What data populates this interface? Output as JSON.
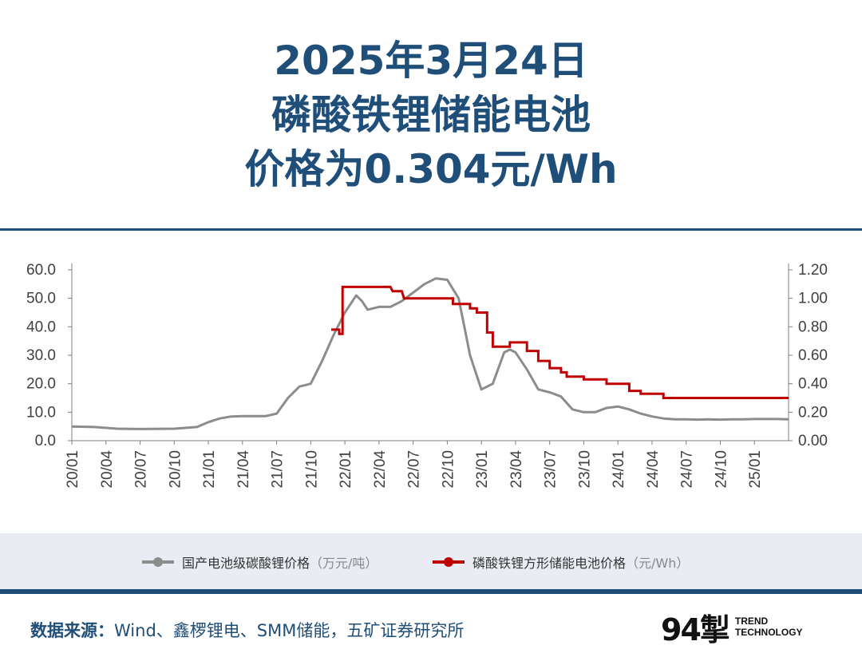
{
  "header": {
    "line1": "2025年3月24日",
    "line2": "磷酸铁锂储能电池",
    "line3": "价格为0.304元/Wh"
  },
  "legend": {
    "series1_label": "国产电池级碳酸锂价格",
    "series1_unit": "（万元/吨）",
    "series2_label": "磷酸铁锂方形储能电池价格",
    "series2_unit": "（元/Wh）"
  },
  "footer": {
    "source_label": "数据来源：",
    "source_text": "Wind、鑫椤锂电、SMM储能，五矿证券研究所",
    "brand_mark": "94掣",
    "brand_line1": "TREND",
    "brand_line2": "TECHNOLOGY"
  },
  "colors": {
    "title": "#1f4e79",
    "series1": "#8c8c8c",
    "series2": "#c00000",
    "axis": "#7f7f7f"
  },
  "chart_data": {
    "type": "line",
    "title": "",
    "xlabel": "",
    "ylabel_left": "",
    "ylabel_right": "",
    "x_ticks": [
      "20/01",
      "20/04",
      "20/07",
      "20/10",
      "21/01",
      "21/04",
      "21/07",
      "21/10",
      "22/01",
      "22/04",
      "22/07",
      "22/10",
      "23/01",
      "23/04",
      "23/07",
      "23/10",
      "24/01",
      "24/04",
      "24/07",
      "24/10",
      "25/01"
    ],
    "y_left_ticks": [
      "0.0",
      "10.0",
      "20.0",
      "30.0",
      "40.0",
      "50.0",
      "60.0"
    ],
    "y_right_ticks": [
      "0.00",
      "0.20",
      "0.40",
      "0.60",
      "0.80",
      "1.00",
      "1.20"
    ],
    "ylim_left": [
      0,
      60
    ],
    "ylim_right": [
      0,
      1.2
    ],
    "x_range_months": [
      0,
      63
    ],
    "series": [
      {
        "name": "国产电池级碳酸锂价格（万元/吨）",
        "axis": "left",
        "x": [
          0,
          2,
          4,
          6,
          9,
          11,
          12,
          13,
          14,
          15,
          16,
          17,
          18,
          19,
          20,
          21,
          22,
          23,
          24,
          25,
          25.5,
          26,
          27,
          28,
          29,
          30,
          31,
          32,
          33,
          34,
          34.5,
          35,
          36,
          37,
          38,
          38.5,
          39,
          40,
          41,
          42,
          43,
          44,
          45,
          46,
          47,
          48,
          49,
          50,
          51,
          52,
          53,
          54,
          55,
          56,
          57,
          58,
          59,
          60,
          61,
          62,
          63
        ],
        "values": [
          5,
          4.8,
          4.2,
          4.1,
          4.2,
          4.8,
          6.5,
          7.8,
          8.5,
          8.6,
          8.6,
          8.6,
          9.5,
          15,
          19,
          20,
          28,
          37,
          45,
          51,
          49,
          46,
          47,
          47,
          49,
          52,
          55,
          57,
          56.5,
          50,
          40,
          30,
          18,
          20,
          31,
          32,
          31,
          25,
          18,
          17,
          15.5,
          11,
          10,
          10,
          11.5,
          12,
          11,
          9.5,
          8.5,
          7.8,
          7.5,
          7.5,
          7.4,
          7.5,
          7.4,
          7.5,
          7.5,
          7.6,
          7.6,
          7.6,
          7.5
        ]
      },
      {
        "name": "磷酸铁锂方形储能电池价格（元/Wh）",
        "axis": "right",
        "x": [
          22.8,
          23.5,
          23.5,
          23.8,
          23.8,
          24.2,
          24.2,
          25,
          28,
          28.2,
          29,
          29.2,
          31,
          31.2,
          33.5,
          33.5,
          35,
          35,
          35.6,
          35.6,
          36.5,
          36.5,
          37,
          37,
          38.5,
          38.5,
          40,
          40,
          41,
          41,
          42,
          42,
          43,
          43,
          43.5,
          43.5,
          45,
          45,
          47,
          47,
          49,
          49,
          50,
          50,
          52,
          52,
          54,
          54,
          55.5,
          55.5,
          56,
          56,
          58,
          58,
          63
        ],
        "values": [
          0.78,
          0.78,
          0.75,
          0.75,
          1.08,
          1.08,
          1.08,
          1.08,
          1.08,
          1.05,
          1.05,
          1.0,
          1.0,
          1.0,
          1.0,
          0.96,
          0.96,
          0.93,
          0.93,
          0.9,
          0.9,
          0.76,
          0.76,
          0.66,
          0.66,
          0.69,
          0.69,
          0.63,
          0.63,
          0.56,
          0.56,
          0.51,
          0.51,
          0.48,
          0.48,
          0.45,
          0.45,
          0.43,
          0.43,
          0.4,
          0.4,
          0.35,
          0.35,
          0.33,
          0.33,
          0.3,
          0.3,
          0.3,
          0.3,
          0.3,
          0.3,
          0.3,
          0.3,
          0.3,
          0.3
        ]
      }
    ]
  }
}
